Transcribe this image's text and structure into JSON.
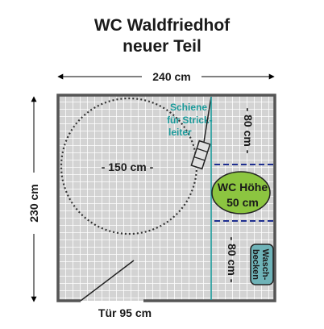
{
  "title": {
    "line1": "WC Waldfriedhof",
    "line2": "neuer Teil"
  },
  "dimensions": {
    "width": "240 cm",
    "height": "230 cm",
    "turning_circle": "- 150 cm -",
    "door": "Tür 95 cm",
    "clear_above": "- 80 cm -",
    "clear_below": "- 80 cm -"
  },
  "labels": {
    "rail": [
      "Schiene",
      "für Strick-",
      "leiter"
    ],
    "wc": [
      "WC Höhe",
      "50 cm"
    ],
    "sink": [
      "Wasch-",
      "becken"
    ]
  },
  "colors": {
    "tile_lines": "#ffffff",
    "tile_fill": "#d3d3d3",
    "wall": "#555555",
    "rail_text": "#1a9a9a",
    "rail_line": "#1a9a9a",
    "wc_fill": "#8cc540",
    "sink_fill": "#6fb3b8",
    "dash_blue": "#1f2f8f"
  }
}
